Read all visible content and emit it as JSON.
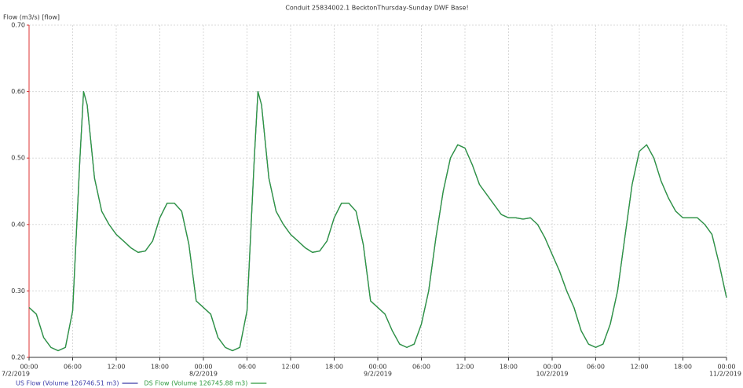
{
  "chart_data": {
    "type": "line",
    "title": "Conduit 25834002.1 BecktonThursday-Sunday DWF Base!",
    "y_label": "Flow (m3/s) [flow]",
    "x": [
      0,
      1,
      2,
      3,
      4,
      5,
      6,
      7,
      7.5,
      8,
      9,
      10,
      11,
      12,
      13,
      14,
      15,
      16,
      17,
      18,
      19,
      20,
      21,
      22,
      23,
      24,
      25,
      26,
      27,
      28,
      29,
      30,
      31,
      31.5,
      32,
      33,
      34,
      35,
      36,
      37,
      38,
      39,
      40,
      41,
      42,
      43,
      44,
      45,
      46,
      47,
      48,
      49,
      50,
      51,
      52,
      53,
      54,
      55,
      56,
      57,
      58,
      59,
      60,
      61,
      62,
      63,
      64,
      65,
      66,
      67,
      68,
      69,
      70,
      71,
      72,
      73,
      74,
      75,
      76,
      77,
      78,
      79,
      80,
      81,
      82,
      83,
      84,
      85,
      86,
      87,
      88,
      89,
      90,
      91,
      92,
      93,
      94,
      95,
      96
    ],
    "series": [
      {
        "name": "US Flow (Volume 126746.51 m3)",
        "color": "#3c3ca8",
        "values": [
          0.275,
          0.265,
          0.23,
          0.215,
          0.21,
          0.215,
          0.27,
          0.5,
          0.6,
          0.58,
          0.47,
          0.42,
          0.4,
          0.385,
          0.375,
          0.365,
          0.358,
          0.36,
          0.375,
          0.41,
          0.432,
          0.432,
          0.42,
          0.37,
          0.285,
          0.275,
          0.265,
          0.23,
          0.215,
          0.21,
          0.215,
          0.27,
          0.5,
          0.6,
          0.58,
          0.47,
          0.42,
          0.4,
          0.385,
          0.375,
          0.365,
          0.358,
          0.36,
          0.375,
          0.41,
          0.432,
          0.432,
          0.42,
          0.37,
          0.285,
          0.275,
          0.265,
          0.24,
          0.22,
          0.215,
          0.22,
          0.25,
          0.3,
          0.38,
          0.45,
          0.5,
          0.52,
          0.515,
          0.49,
          0.46,
          0.445,
          0.43,
          0.415,
          0.41,
          0.41,
          0.408,
          0.41,
          0.4,
          0.38,
          0.355,
          0.33,
          0.3,
          0.275,
          0.24,
          0.22,
          0.215,
          0.22,
          0.25,
          0.3,
          0.38,
          0.46,
          0.51,
          0.52,
          0.5,
          0.465,
          0.44,
          0.42,
          0.41,
          0.41,
          0.41,
          0.4,
          0.385,
          0.34,
          0.29
        ]
      },
      {
        "name": "DS Flow (Volume 126745.88 m3)",
        "color": "#2e9a3e",
        "values": [
          0.275,
          0.265,
          0.23,
          0.215,
          0.21,
          0.215,
          0.27,
          0.5,
          0.6,
          0.58,
          0.47,
          0.42,
          0.4,
          0.385,
          0.375,
          0.365,
          0.358,
          0.36,
          0.375,
          0.41,
          0.432,
          0.432,
          0.42,
          0.37,
          0.285,
          0.275,
          0.265,
          0.23,
          0.215,
          0.21,
          0.215,
          0.27,
          0.5,
          0.6,
          0.58,
          0.47,
          0.42,
          0.4,
          0.385,
          0.375,
          0.365,
          0.358,
          0.36,
          0.375,
          0.41,
          0.432,
          0.432,
          0.42,
          0.37,
          0.285,
          0.275,
          0.265,
          0.24,
          0.22,
          0.215,
          0.22,
          0.25,
          0.3,
          0.38,
          0.45,
          0.5,
          0.52,
          0.515,
          0.49,
          0.46,
          0.445,
          0.43,
          0.415,
          0.41,
          0.41,
          0.408,
          0.41,
          0.4,
          0.38,
          0.355,
          0.33,
          0.3,
          0.275,
          0.24,
          0.22,
          0.215,
          0.22,
          0.25,
          0.3,
          0.38,
          0.46,
          0.51,
          0.52,
          0.5,
          0.465,
          0.44,
          0.42,
          0.41,
          0.41,
          0.41,
          0.4,
          0.385,
          0.34,
          0.29
        ]
      }
    ],
    "xlim": [
      0,
      96
    ],
    "ylim": [
      0.2,
      0.7
    ],
    "xticks": [
      {
        "value": 0,
        "label": "00:00"
      },
      {
        "value": 6,
        "label": "06:00"
      },
      {
        "value": 12,
        "label": "12:00"
      },
      {
        "value": 18,
        "label": "18:00"
      },
      {
        "value": 24,
        "label": "00:00"
      },
      {
        "value": 30,
        "label": "06:00"
      },
      {
        "value": 36,
        "label": "12:00"
      },
      {
        "value": 42,
        "label": "18:00"
      },
      {
        "value": 48,
        "label": "00:00"
      },
      {
        "value": 54,
        "label": "06:00"
      },
      {
        "value": 60,
        "label": "12:00"
      },
      {
        "value": 66,
        "label": "18:00"
      },
      {
        "value": 72,
        "label": "00:00"
      },
      {
        "value": 78,
        "label": "06:00"
      },
      {
        "value": 84,
        "label": "12:00"
      },
      {
        "value": 90,
        "label": "18:00"
      },
      {
        "value": 96,
        "label": "00:00"
      }
    ],
    "xdate_ticks": [
      {
        "value": 0,
        "label": "7/2/2019"
      },
      {
        "value": 24,
        "label": "8/2/2019"
      },
      {
        "value": 48,
        "label": "9/2/2019"
      },
      {
        "value": 72,
        "label": "10/2/2019"
      },
      {
        "value": 96,
        "label": "11/2/2019"
      }
    ],
    "yticks": [
      {
        "value": 0.2,
        "label": "0.20"
      },
      {
        "value": 0.3,
        "label": "0.30"
      },
      {
        "value": 0.4,
        "label": "0.40"
      },
      {
        "value": 0.5,
        "label": "0.50"
      },
      {
        "value": 0.6,
        "label": "0.60"
      },
      {
        "value": 0.7,
        "label": "0.70"
      }
    ],
    "grid": true
  }
}
